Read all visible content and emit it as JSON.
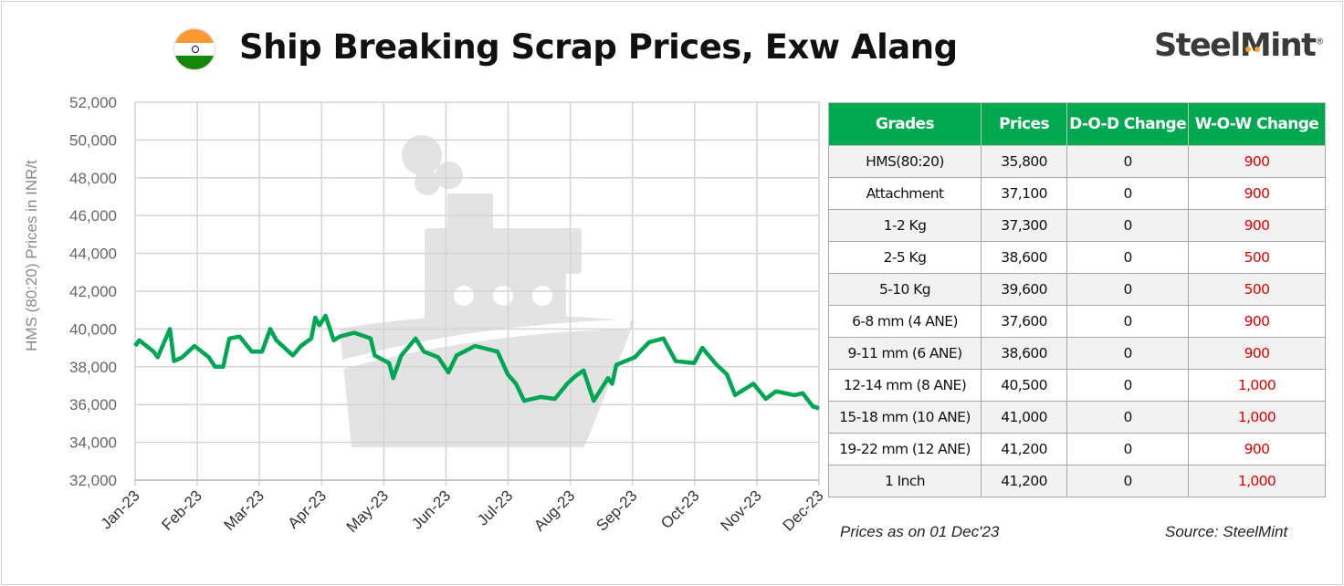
{
  "header": {
    "title": "Ship Breaking Scrap Prices, Exw Alang",
    "logo": "SteelMint",
    "flag_icon": "india-flag-icon",
    "flag_colors": [
      "#ff9933",
      "#ffffff",
      "#138808"
    ]
  },
  "chart_data": {
    "type": "line",
    "title": "Ship Breaking Scrap Prices, Exw Alang",
    "ylabel": "HMS (80:20) Prices in INR/t",
    "xlabel": "",
    "ylim": [
      32000,
      52000
    ],
    "yticks": [
      "32,000",
      "34,000",
      "36,000",
      "38,000",
      "40,000",
      "42,000",
      "44,000",
      "46,000",
      "48,000",
      "50,000",
      "52,000"
    ],
    "xticks": [
      "Jan-23",
      "Feb-23",
      "Mar-23",
      "Apr-23",
      "May-23",
      "Jun-23",
      "Jul-23",
      "Aug-23",
      "Sep-23",
      "Oct-23",
      "Nov-23",
      "Dec-23"
    ],
    "grid": true,
    "line_color": "#00a651",
    "points": [
      [
        "2023-01-01",
        39100
      ],
      [
        "2023-01-03",
        39400
      ],
      [
        "2023-01-10",
        38800
      ],
      [
        "2023-01-12",
        38500
      ],
      [
        "2023-01-18",
        40000
      ],
      [
        "2023-01-20",
        38300
      ],
      [
        "2023-01-24",
        38500
      ],
      [
        "2023-01-30",
        39100
      ],
      [
        "2023-02-06",
        38500
      ],
      [
        "2023-02-09",
        38000
      ],
      [
        "2023-02-13",
        38000
      ],
      [
        "2023-02-16",
        39500
      ],
      [
        "2023-02-21",
        39600
      ],
      [
        "2023-02-27",
        38800
      ],
      [
        "2023-03-04",
        38800
      ],
      [
        "2023-03-08",
        40000
      ],
      [
        "2023-03-11",
        39400
      ],
      [
        "2023-03-19",
        38600
      ],
      [
        "2023-03-23",
        39100
      ],
      [
        "2023-03-28",
        39500
      ],
      [
        "2023-03-30",
        40600
      ],
      [
        "2023-04-01",
        40200
      ],
      [
        "2023-04-04",
        40700
      ],
      [
        "2023-04-08",
        39400
      ],
      [
        "2023-04-11",
        39600
      ],
      [
        "2023-04-18",
        39800
      ],
      [
        "2023-04-26",
        39500
      ],
      [
        "2023-04-28",
        38600
      ],
      [
        "2023-05-05",
        38200
      ],
      [
        "2023-05-07",
        37400
      ],
      [
        "2023-05-11",
        38600
      ],
      [
        "2023-05-18",
        39500
      ],
      [
        "2023-05-22",
        38800
      ],
      [
        "2023-05-29",
        38500
      ],
      [
        "2023-06-03",
        37700
      ],
      [
        "2023-06-07",
        38600
      ],
      [
        "2023-06-16",
        39100
      ],
      [
        "2023-06-27",
        38800
      ],
      [
        "2023-07-02",
        37600
      ],
      [
        "2023-07-06",
        37100
      ],
      [
        "2023-07-10",
        36200
      ],
      [
        "2023-07-18",
        36400
      ],
      [
        "2023-07-25",
        36300
      ],
      [
        "2023-07-31",
        37100
      ],
      [
        "2023-08-04",
        37500
      ],
      [
        "2023-08-08",
        37800
      ],
      [
        "2023-08-13",
        36200
      ],
      [
        "2023-08-20",
        37400
      ],
      [
        "2023-08-22",
        37100
      ],
      [
        "2023-08-24",
        38100
      ],
      [
        "2023-09-02",
        38500
      ],
      [
        "2023-09-09",
        39300
      ],
      [
        "2023-09-16",
        39500
      ],
      [
        "2023-09-22",
        38300
      ],
      [
        "2023-10-01",
        38200
      ],
      [
        "2023-10-05",
        39000
      ],
      [
        "2023-10-12",
        38100
      ],
      [
        "2023-10-17",
        37600
      ],
      [
        "2023-10-21",
        36500
      ],
      [
        "2023-10-30",
        37100
      ],
      [
        "2023-11-05",
        36300
      ],
      [
        "2023-11-10",
        36700
      ],
      [
        "2023-11-19",
        36500
      ],
      [
        "2023-11-23",
        36600
      ],
      [
        "2023-11-28",
        35900
      ],
      [
        "2023-12-01",
        35800
      ]
    ]
  },
  "table": {
    "headers": [
      "Grades",
      "Prices",
      "D-O-D Change",
      "W-O-W Change"
    ],
    "header_color": "#00a94f",
    "rows": [
      [
        "HMS(80:20)",
        "35,800",
        "0",
        "900"
      ],
      [
        "Attachment",
        "37,100",
        "0",
        "900"
      ],
      [
        "1-2 Kg",
        "37,300",
        "0",
        "900"
      ],
      [
        "2-5 Kg",
        "38,600",
        "0",
        "500"
      ],
      [
        "5-10 Kg",
        "39,600",
        "0",
        "500"
      ],
      [
        "6-8 mm (4 ANE)",
        "37,600",
        "0",
        "900"
      ],
      [
        "9-11 mm (6 ANE)",
        "38,600",
        "0",
        "900"
      ],
      [
        "12-14 mm (8 ANE)",
        "40,500",
        "0",
        "1,000"
      ],
      [
        "15-18 mm (10 ANE)",
        "41,000",
        "0",
        "1,000"
      ],
      [
        "19-22 mm (12 ANE)",
        "41,200",
        "0",
        "900"
      ],
      [
        "1 Inch",
        "41,200",
        "0",
        "1,000"
      ]
    ]
  },
  "footer": {
    "date_note": "Prices as on 01 Dec'23",
    "source": "Source: SteelMint"
  }
}
